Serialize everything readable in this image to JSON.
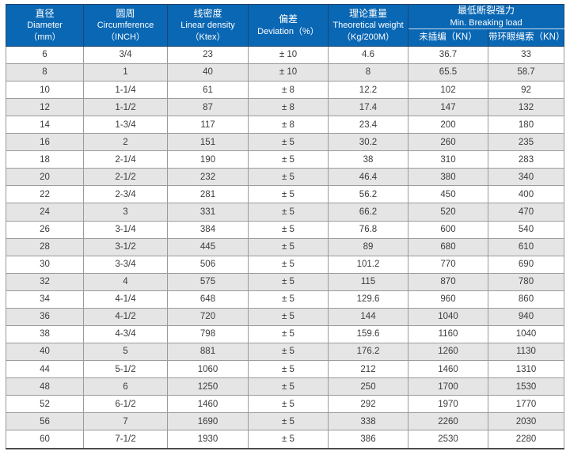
{
  "colors": {
    "header_bg": "#0a67b4",
    "header_text": "#ffffff",
    "row_alt_bg": "#e5e5e5",
    "grid_line": "#9b9b9b",
    "outer_border": "#4c4c4c"
  },
  "table": {
    "header": {
      "diameter": {
        "cn": "直径",
        "en": "Diameter",
        "unit": "（mm）"
      },
      "circumference": {
        "cn": "圆周",
        "en": "Circumference",
        "unit": "（INCH）"
      },
      "linear_density": {
        "cn": "线密度",
        "en": "Linear density",
        "unit": "（Ktex）"
      },
      "deviation": {
        "cn": "偏差",
        "en": "Deviation（%）"
      },
      "theoretical_weight": {
        "cn": "理论重量",
        "en": "Theoretical weight",
        "unit": "（Kg/200M）"
      },
      "min_breaking_load": {
        "cn": "最低断裂强力",
        "en": "Min. Breaking load",
        "sub_left": "未插编（KN）",
        "sub_right": "带环眼绳索（KN）"
      }
    },
    "rows": [
      [
        "6",
        "3/4",
        "23",
        "± 10",
        "4.6",
        "36.7",
        "33"
      ],
      [
        "8",
        "1",
        "40",
        "± 10",
        "8",
        "65.5",
        "58.7"
      ],
      [
        "10",
        "1-1/4",
        "61",
        "± 8",
        "12.2",
        "102",
        "92"
      ],
      [
        "12",
        "1-1/2",
        "87",
        "± 8",
        "17.4",
        "147",
        "132"
      ],
      [
        "14",
        "1-3/4",
        "117",
        "± 8",
        "23.4",
        "200",
        "180"
      ],
      [
        "16",
        "2",
        "151",
        "± 5",
        "30.2",
        "260",
        "235"
      ],
      [
        "18",
        "2-1/4",
        "190",
        "± 5",
        "38",
        "310",
        "283"
      ],
      [
        "20",
        "2-1/2",
        "232",
        "± 5",
        "46.4",
        "380",
        "340"
      ],
      [
        "22",
        "2-3/4",
        "281",
        "± 5",
        "56.2",
        "450",
        "400"
      ],
      [
        "24",
        "3",
        "331",
        "± 5",
        "66.2",
        "520",
        "470"
      ],
      [
        "26",
        "3-1/4",
        "384",
        "± 5",
        "76.8",
        "600",
        "540"
      ],
      [
        "28",
        "3-1/2",
        "445",
        "± 5",
        "89",
        "680",
        "610"
      ],
      [
        "30",
        "3-3/4",
        "506",
        "± 5",
        "101.2",
        "770",
        "690"
      ],
      [
        "32",
        "4",
        "575",
        "± 5",
        "115",
        "870",
        "780"
      ],
      [
        "34",
        "4-1/4",
        "648",
        "± 5",
        "129.6",
        "960",
        "860"
      ],
      [
        "36",
        "4-1/2",
        "720",
        "± 5",
        "144",
        "1040",
        "940"
      ],
      [
        "38",
        "4-3/4",
        "798",
        "± 5",
        "159.6",
        "1160",
        "1040"
      ],
      [
        "40",
        "5",
        "881",
        "± 5",
        "176.2",
        "1260",
        "1130"
      ],
      [
        "44",
        "5-1/2",
        "1060",
        "± 5",
        "212",
        "1460",
        "1310"
      ],
      [
        "48",
        "6",
        "1250",
        "± 5",
        "250",
        "1700",
        "1530"
      ],
      [
        "52",
        "6-1/2",
        "1460",
        "± 5",
        "292",
        "1970",
        "1770"
      ],
      [
        "56",
        "7",
        "1690",
        "± 5",
        "338",
        "2260",
        "2030"
      ],
      [
        "60",
        "7-1/2",
        "1930",
        "± 5",
        "386",
        "2530",
        "2280"
      ]
    ]
  }
}
